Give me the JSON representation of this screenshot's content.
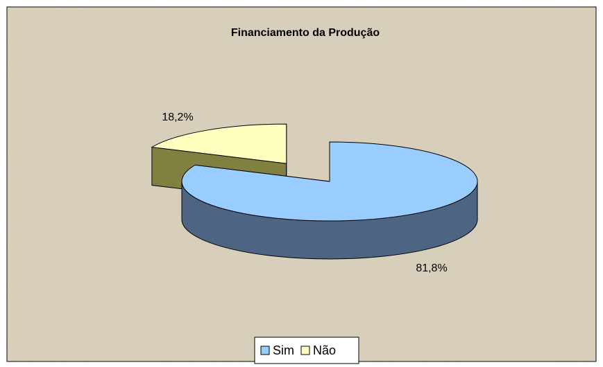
{
  "chart_data": {
    "type": "pie3d",
    "title": "Financiamento da Produção",
    "categories": [
      "Sim",
      "Não"
    ],
    "values": [
      81.8,
      18.2
    ],
    "value_labels": [
      "81,8%",
      "18,2%"
    ],
    "colors": [
      "#99ccff",
      "#ffffc0"
    ],
    "side_colors": [
      "#4d6482",
      "#808040"
    ],
    "legend": "bottom"
  }
}
